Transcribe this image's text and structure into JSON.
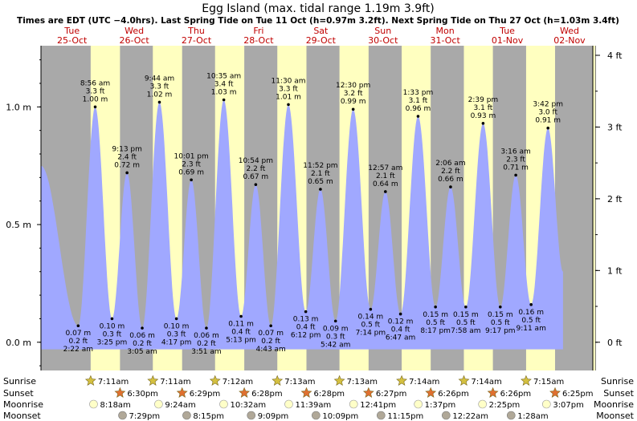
{
  "chart_data": {
    "type": "area",
    "title": "Egg Island (max. tidal range 1.19m 3.9ft)",
    "subtitle": "Times are EDT (UTC −4.0hrs). Last Spring Tide on Tue 11 Oct (h=0.97m 3.2ft). Next Spring Tide on Thu 27 Oct (h=1.03m 3.4ft)",
    "ylabel_left_unit": "m",
    "ylabel_right_unit": "ft",
    "ylim_m": [
      -0.12,
      1.26
    ],
    "yticks_m": [
      {
        "value": 0.0,
        "label": "0.0 m"
      },
      {
        "value": 0.5,
        "label": "0.5 m"
      },
      {
        "value": 1.0,
        "label": "1.0 m"
      }
    ],
    "yticks_ft": [
      {
        "value": 0,
        "label": "0 ft"
      },
      {
        "value": 1,
        "label": "1 ft"
      },
      {
        "value": 2,
        "label": "2 ft"
      },
      {
        "value": 3,
        "label": "3 ft"
      },
      {
        "value": 4,
        "label": "4 ft"
      }
    ],
    "xlim_hours": [
      -12,
      201
    ],
    "day_columns": [
      {
        "day": "Tue",
        "date": "25-Oct"
      },
      {
        "day": "Wed",
        "date": "26-Oct"
      },
      {
        "day": "Thu",
        "date": "27-Oct"
      },
      {
        "day": "Fri",
        "date": "28-Oct"
      },
      {
        "day": "Sat",
        "date": "29-Oct"
      },
      {
        "day": "Sun",
        "date": "30-Oct"
      },
      {
        "day": "Mon",
        "date": "31-Oct"
      },
      {
        "day": "Tue",
        "date": "01-Nov"
      },
      {
        "day": "Wed",
        "date": "02-Nov"
      }
    ],
    "tides": [
      {
        "t": -12.0,
        "h": 0.75,
        "type": "start"
      },
      {
        "t": 2.37,
        "h": 0.07,
        "type": "low",
        "time": "2:22 am",
        "ft": "0.2 ft",
        "m": "0.07 m"
      },
      {
        "t": 8.93,
        "h": 1.0,
        "type": "high",
        "time": "8:56 am",
        "ft": "3.3 ft",
        "m": "1.00 m"
      },
      {
        "t": 15.42,
        "h": 0.1,
        "type": "low",
        "time": "3:25 pm",
        "ft": "0.3 ft",
        "m": "0.10 m"
      },
      {
        "t": 21.22,
        "h": 0.72,
        "type": "high",
        "time": "9:13 pm",
        "ft": "2.4 ft",
        "m": "0.72 m"
      },
      {
        "t": 27.08,
        "h": 0.06,
        "type": "low",
        "time": "3:05 am",
        "ft": "0.2 ft",
        "m": "0.06 m"
      },
      {
        "t": 33.73,
        "h": 1.02,
        "type": "high",
        "time": "9:44 am",
        "ft": "3.3 ft",
        "m": "1.02 m"
      },
      {
        "t": 40.28,
        "h": 0.1,
        "type": "low",
        "time": "4:17 pm",
        "ft": "0.3 ft",
        "m": "0.10 m"
      },
      {
        "t": 46.02,
        "h": 0.69,
        "type": "high",
        "time": "10:01 pm",
        "ft": "2.3 ft",
        "m": "0.69 m"
      },
      {
        "t": 51.85,
        "h": 0.06,
        "type": "low",
        "time": "3:51 am",
        "ft": "0.2 ft",
        "m": "0.06 m"
      },
      {
        "t": 58.58,
        "h": 1.03,
        "type": "high",
        "time": "10:35 am",
        "ft": "3.4 ft",
        "m": "1.03 m"
      },
      {
        "t": 65.22,
        "h": 0.11,
        "type": "low",
        "time": "5:13 pm",
        "ft": "0.4 ft",
        "m": "0.11 m"
      },
      {
        "t": 70.9,
        "h": 0.67,
        "type": "high",
        "time": "10:54 pm",
        "ft": "2.2 ft",
        "m": "0.67 m"
      },
      {
        "t": 76.72,
        "h": 0.07,
        "type": "low",
        "time": "4:43 am",
        "ft": "0.2 ft",
        "m": "0.07 m"
      },
      {
        "t": 83.5,
        "h": 1.01,
        "type": "high",
        "time": "11:30 am",
        "ft": "3.3 ft",
        "m": "1.01 m"
      },
      {
        "t": 90.2,
        "h": 0.13,
        "type": "low",
        "time": "6:12 pm",
        "ft": "0.4 ft",
        "m": "0.13 m"
      },
      {
        "t": 95.87,
        "h": 0.65,
        "type": "high",
        "time": "11:52 pm",
        "ft": "2.1 ft",
        "m": "0.65 m"
      },
      {
        "t": 101.7,
        "h": 0.09,
        "type": "low",
        "time": "5:42 am",
        "ft": "0.3 ft",
        "m": "0.09 m"
      },
      {
        "t": 108.5,
        "h": 0.99,
        "type": "high",
        "time": "12:30 pm",
        "ft": "3.2 ft",
        "m": "0.99 m"
      },
      {
        "t": 115.23,
        "h": 0.14,
        "type": "low",
        "time": "7:14 pm",
        "ft": "0.5 ft",
        "m": "0.14 m"
      },
      {
        "t": 120.95,
        "h": 0.64,
        "type": "high",
        "time": "12:57 am",
        "ft": "2.1 ft",
        "m": "0.64 m"
      },
      {
        "t": 126.78,
        "h": 0.12,
        "type": "low",
        "time": "6:47 am",
        "ft": "0.4 ft",
        "m": "0.12 m"
      },
      {
        "t": 133.55,
        "h": 0.96,
        "type": "high",
        "time": "1:33 pm",
        "ft": "3.1 ft",
        "m": "0.96 m"
      },
      {
        "t": 140.28,
        "h": 0.15,
        "type": "low",
        "time": "8:17 pm",
        "ft": "0.5 ft",
        "m": "0.15 m"
      },
      {
        "t": 146.1,
        "h": 0.66,
        "type": "high",
        "time": "2:06 am",
        "ft": "2.2 ft",
        "m": "0.66 m"
      },
      {
        "t": 151.97,
        "h": 0.15,
        "type": "low",
        "time": "7:58 am",
        "ft": "0.5 ft",
        "m": "0.15 m"
      },
      {
        "t": 158.65,
        "h": 0.93,
        "type": "high",
        "time": "2:39 pm",
        "ft": "3.1 ft",
        "m": "0.93 m"
      },
      {
        "t": 165.28,
        "h": 0.15,
        "type": "low",
        "time": "9:17 pm",
        "ft": "0.5 ft",
        "m": "0.15 m"
      },
      {
        "t": 171.27,
        "h": 0.71,
        "type": "high",
        "time": "3:16 am",
        "ft": "2.3 ft",
        "m": "0.71 m"
      },
      {
        "t": 177.18,
        "h": 0.16,
        "type": "low",
        "time": "9:11 am",
        "ft": "0.5 ft",
        "m": "0.16 m"
      },
      {
        "t": 183.7,
        "h": 0.91,
        "type": "high",
        "time": "3:42 pm",
        "ft": "3.0 ft",
        "m": "0.91 m"
      },
      {
        "t": 189.5,
        "h": 0.3,
        "type": "end"
      }
    ],
    "sun": [
      {
        "rise": 7.18,
        "set": 18.5,
        "rise_label": "7:11am",
        "set_label": "6:30pm"
      },
      {
        "rise": 31.18,
        "set": 42.48,
        "rise_label": "7:11am",
        "set_label": "6:29pm"
      },
      {
        "rise": 55.2,
        "set": 66.47,
        "rise_label": "7:12am",
        "set_label": "6:28pm"
      },
      {
        "rise": 79.22,
        "set": 90.47,
        "rise_label": "7:13am",
        "set_label": "6:28pm"
      },
      {
        "rise": 103.22,
        "set": 114.45,
        "rise_label": "7:13am",
        "set_label": "6:27pm"
      },
      {
        "rise": 127.23,
        "set": 138.43,
        "rise_label": "7:14am",
        "set_label": "6:26pm"
      },
      {
        "rise": 151.23,
        "set": 162.43,
        "rise_label": "7:14am",
        "set_label": "6:26pm"
      },
      {
        "rise": 175.25,
        "set": 186.42,
        "rise_label": "7:15am",
        "set_label": "6:25pm"
      }
    ],
    "moonrise": [
      {
        "t": 8.3,
        "label": "8:18am"
      },
      {
        "t": 33.4,
        "label": "9:24am"
      },
      {
        "t": 58.53,
        "label": "10:32am"
      },
      {
        "t": 83.65,
        "label": "11:39am"
      },
      {
        "t": 108.68,
        "label": "12:41pm"
      },
      {
        "t": 133.62,
        "label": "1:37pm"
      },
      {
        "t": 158.42,
        "label": "2:25pm"
      },
      {
        "t": 183.12,
        "label": "3:07pm"
      }
    ],
    "moonset": [
      {
        "t": 19.48,
        "label": "7:29pm"
      },
      {
        "t": 44.25,
        "label": "8:15pm"
      },
      {
        "t": 69.15,
        "label": "9:09pm"
      },
      {
        "t": 94.15,
        "label": "10:09pm"
      },
      {
        "t": 119.25,
        "label": "11:15pm"
      },
      {
        "t": 144.37,
        "label": "12:22am"
      },
      {
        "t": 169.47,
        "label": "1:28am"
      }
    ],
    "row_labels": {
      "sunrise": "Sunrise",
      "sunset": "Sunset",
      "moonrise": "Moonrise",
      "moonset": "Moonset"
    },
    "colors": {
      "tide_fill": "#a0a8ff",
      "night": "#a9a9a9",
      "day": "#ffffc0",
      "outside": "#ffffff",
      "day_header": "#c00000",
      "sunrise_star": "#d4c040",
      "sunset_star": "#e07030",
      "moonrise_disc": "#ffffc8",
      "moonset_disc": "#b0a898"
    }
  }
}
